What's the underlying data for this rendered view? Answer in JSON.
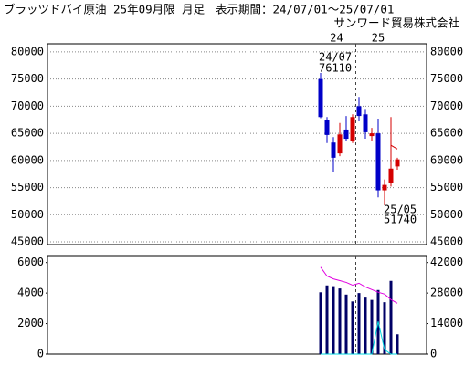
{
  "chart_data": [
    {
      "type": "candlestick",
      "title": "ブラッツドバイ原油 25年09月限 月足",
      "period": "表示期間：24/07/01～25/07/01",
      "source": "サンワード貿易株式会社",
      "year_labels": [
        "24",
        "25"
      ],
      "annotations": [
        "24/07",
        "25/05"
      ],
      "categories": [
        null,
        null,
        null,
        null,
        null,
        null,
        null,
        null,
        null,
        null,
        null,
        null,
        null
      ],
      "open": [
        75000,
        67400,
        63300,
        61300,
        65700,
        63500,
        70000,
        68500,
        64500,
        65000,
        54500,
        55900,
        58900
      ],
      "high": [
        76110,
        68000,
        64300,
        66900,
        68200,
        68500,
        71700,
        69500,
        66000,
        67700,
        56500,
        68000,
        60500
      ],
      "low": [
        67800,
        63200,
        57800,
        60800,
        63500,
        63200,
        67200,
        64000,
        63500,
        53200,
        51740,
        55200,
        58300
      ],
      "close": [
        68000,
        64700,
        60500,
        64800,
        64000,
        68000,
        68200,
        65200,
        65000,
        54500,
        55500,
        58500,
        60200
      ],
      "up_color": "#d40000",
      "down_color": "#0000c8",
      "ma": {
        "color": "#d40000",
        "values": [
          null,
          null,
          null,
          null,
          null,
          null,
          null,
          null,
          null,
          null,
          null,
          62800,
          62100
        ]
      },
      "ylim": [
        44500,
        81500
      ],
      "yticks": [
        45000,
        50000,
        55000,
        60000,
        65000,
        70000,
        75000,
        80000
      ],
      "grid": true
    },
    {
      "type": "bar",
      "color": "#000066",
      "values": [
        4050,
        4500,
        4450,
        4300,
        3900,
        3450,
        4000,
        3700,
        3550,
        4200,
        3400,
        4800,
        1300
      ],
      "lines": [
        {
          "color": "#e000e0",
          "axis": "y2",
          "values": [
            39900,
            35800,
            34500,
            33700,
            32900,
            31600,
            32500,
            30800,
            29600,
            28400,
            27500,
            25000,
            23300
          ]
        },
        {
          "color": "#00d8e0",
          "axis": "y2",
          "values": [
            0,
            0,
            0,
            0,
            0,
            0,
            0,
            0,
            0,
            15000,
            2000,
            0,
            0
          ]
        }
      ],
      "ylim": [
        0,
        6400
      ],
      "yticks": [
        0,
        2000,
        4000,
        6000
      ],
      "y2lim": [
        0,
        44800
      ],
      "y2ticks": [
        0,
        14000,
        28000,
        42000
      ],
      "y2color": "#e000e0"
    }
  ]
}
